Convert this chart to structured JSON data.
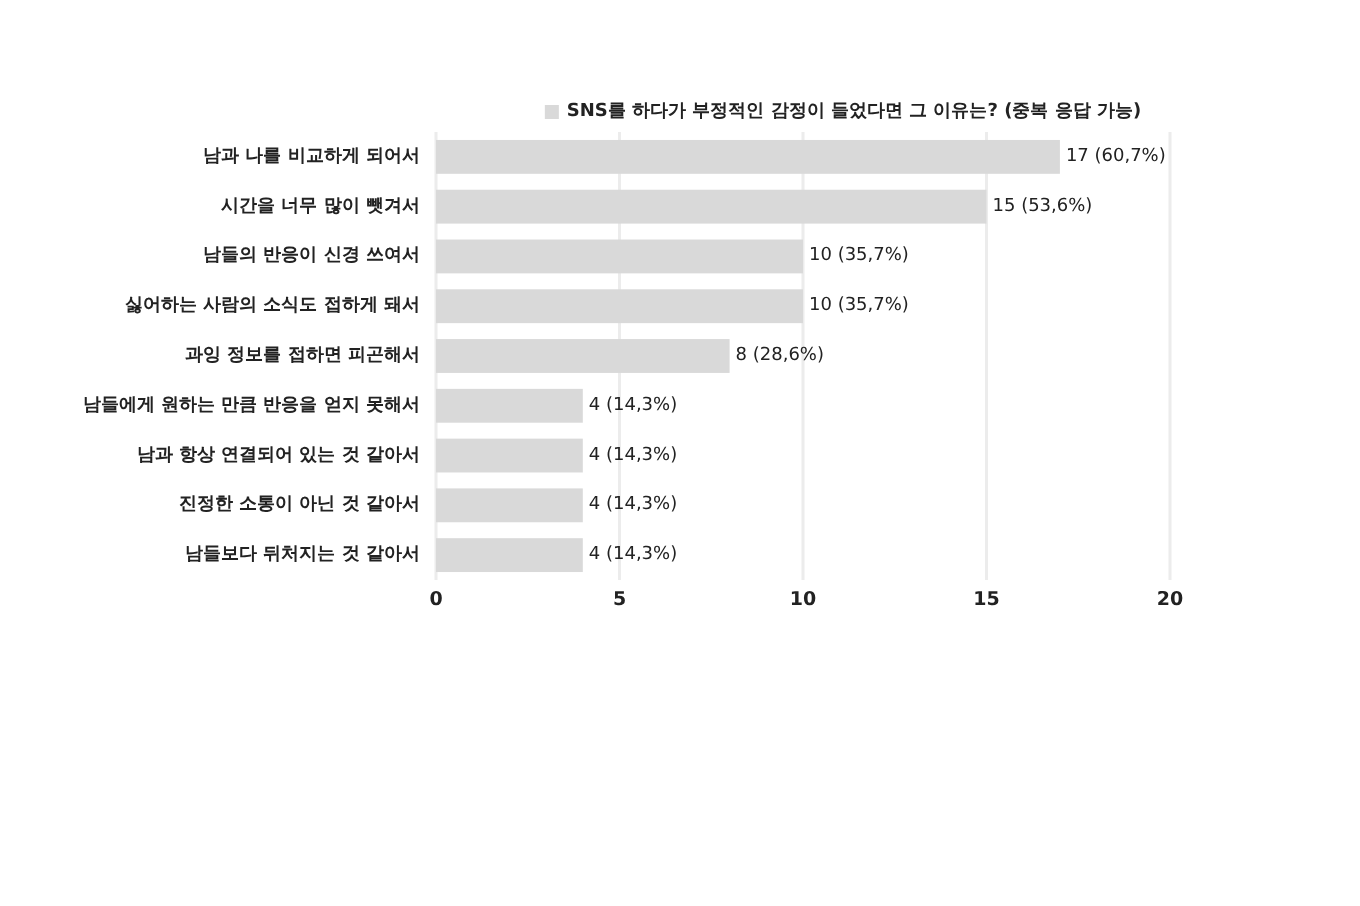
{
  "chart_data": {
    "type": "bar",
    "orientation": "horizontal",
    "categories": [
      "남과 나를 비교하게 되어서",
      "시간을 너무 많이 뺏겨서",
      "남들의 반응이 신경 쓰여서",
      "싫어하는 사람의 소식도 접하게 돼서",
      "과잉 정보를 접하면 피곤해서",
      "남들에게 원하는 만큼 반응을 얻지 못해서",
      "남과 항상 연결되어 있는 것 같아서",
      "진정한 소통이 아닌 것 같아서",
      "남들보다 뒤처지는 것 같아서"
    ],
    "series": [
      {
        "name": "SNS를 하다가 부정적인 감정이 들었다면 그 이유는? (중복 응답 가능)",
        "color": "#d9d9d9",
        "values": [
          17,
          15,
          10,
          10,
          8,
          4,
          4,
          4,
          4
        ],
        "value_labels": [
          "17 (60,7%)",
          "15 (53,6%)",
          "10 (35,7%)",
          "10 (35,7%)",
          "8 (28,6%)",
          "4 (14,3%)",
          "4 (14,3%)",
          "4 (14,3%)",
          "4 (14,3%)"
        ]
      }
    ],
    "xlim": [
      0,
      20
    ],
    "xticks": [
      0,
      5,
      10,
      15,
      20
    ],
    "grid": "x",
    "legend": "top"
  }
}
